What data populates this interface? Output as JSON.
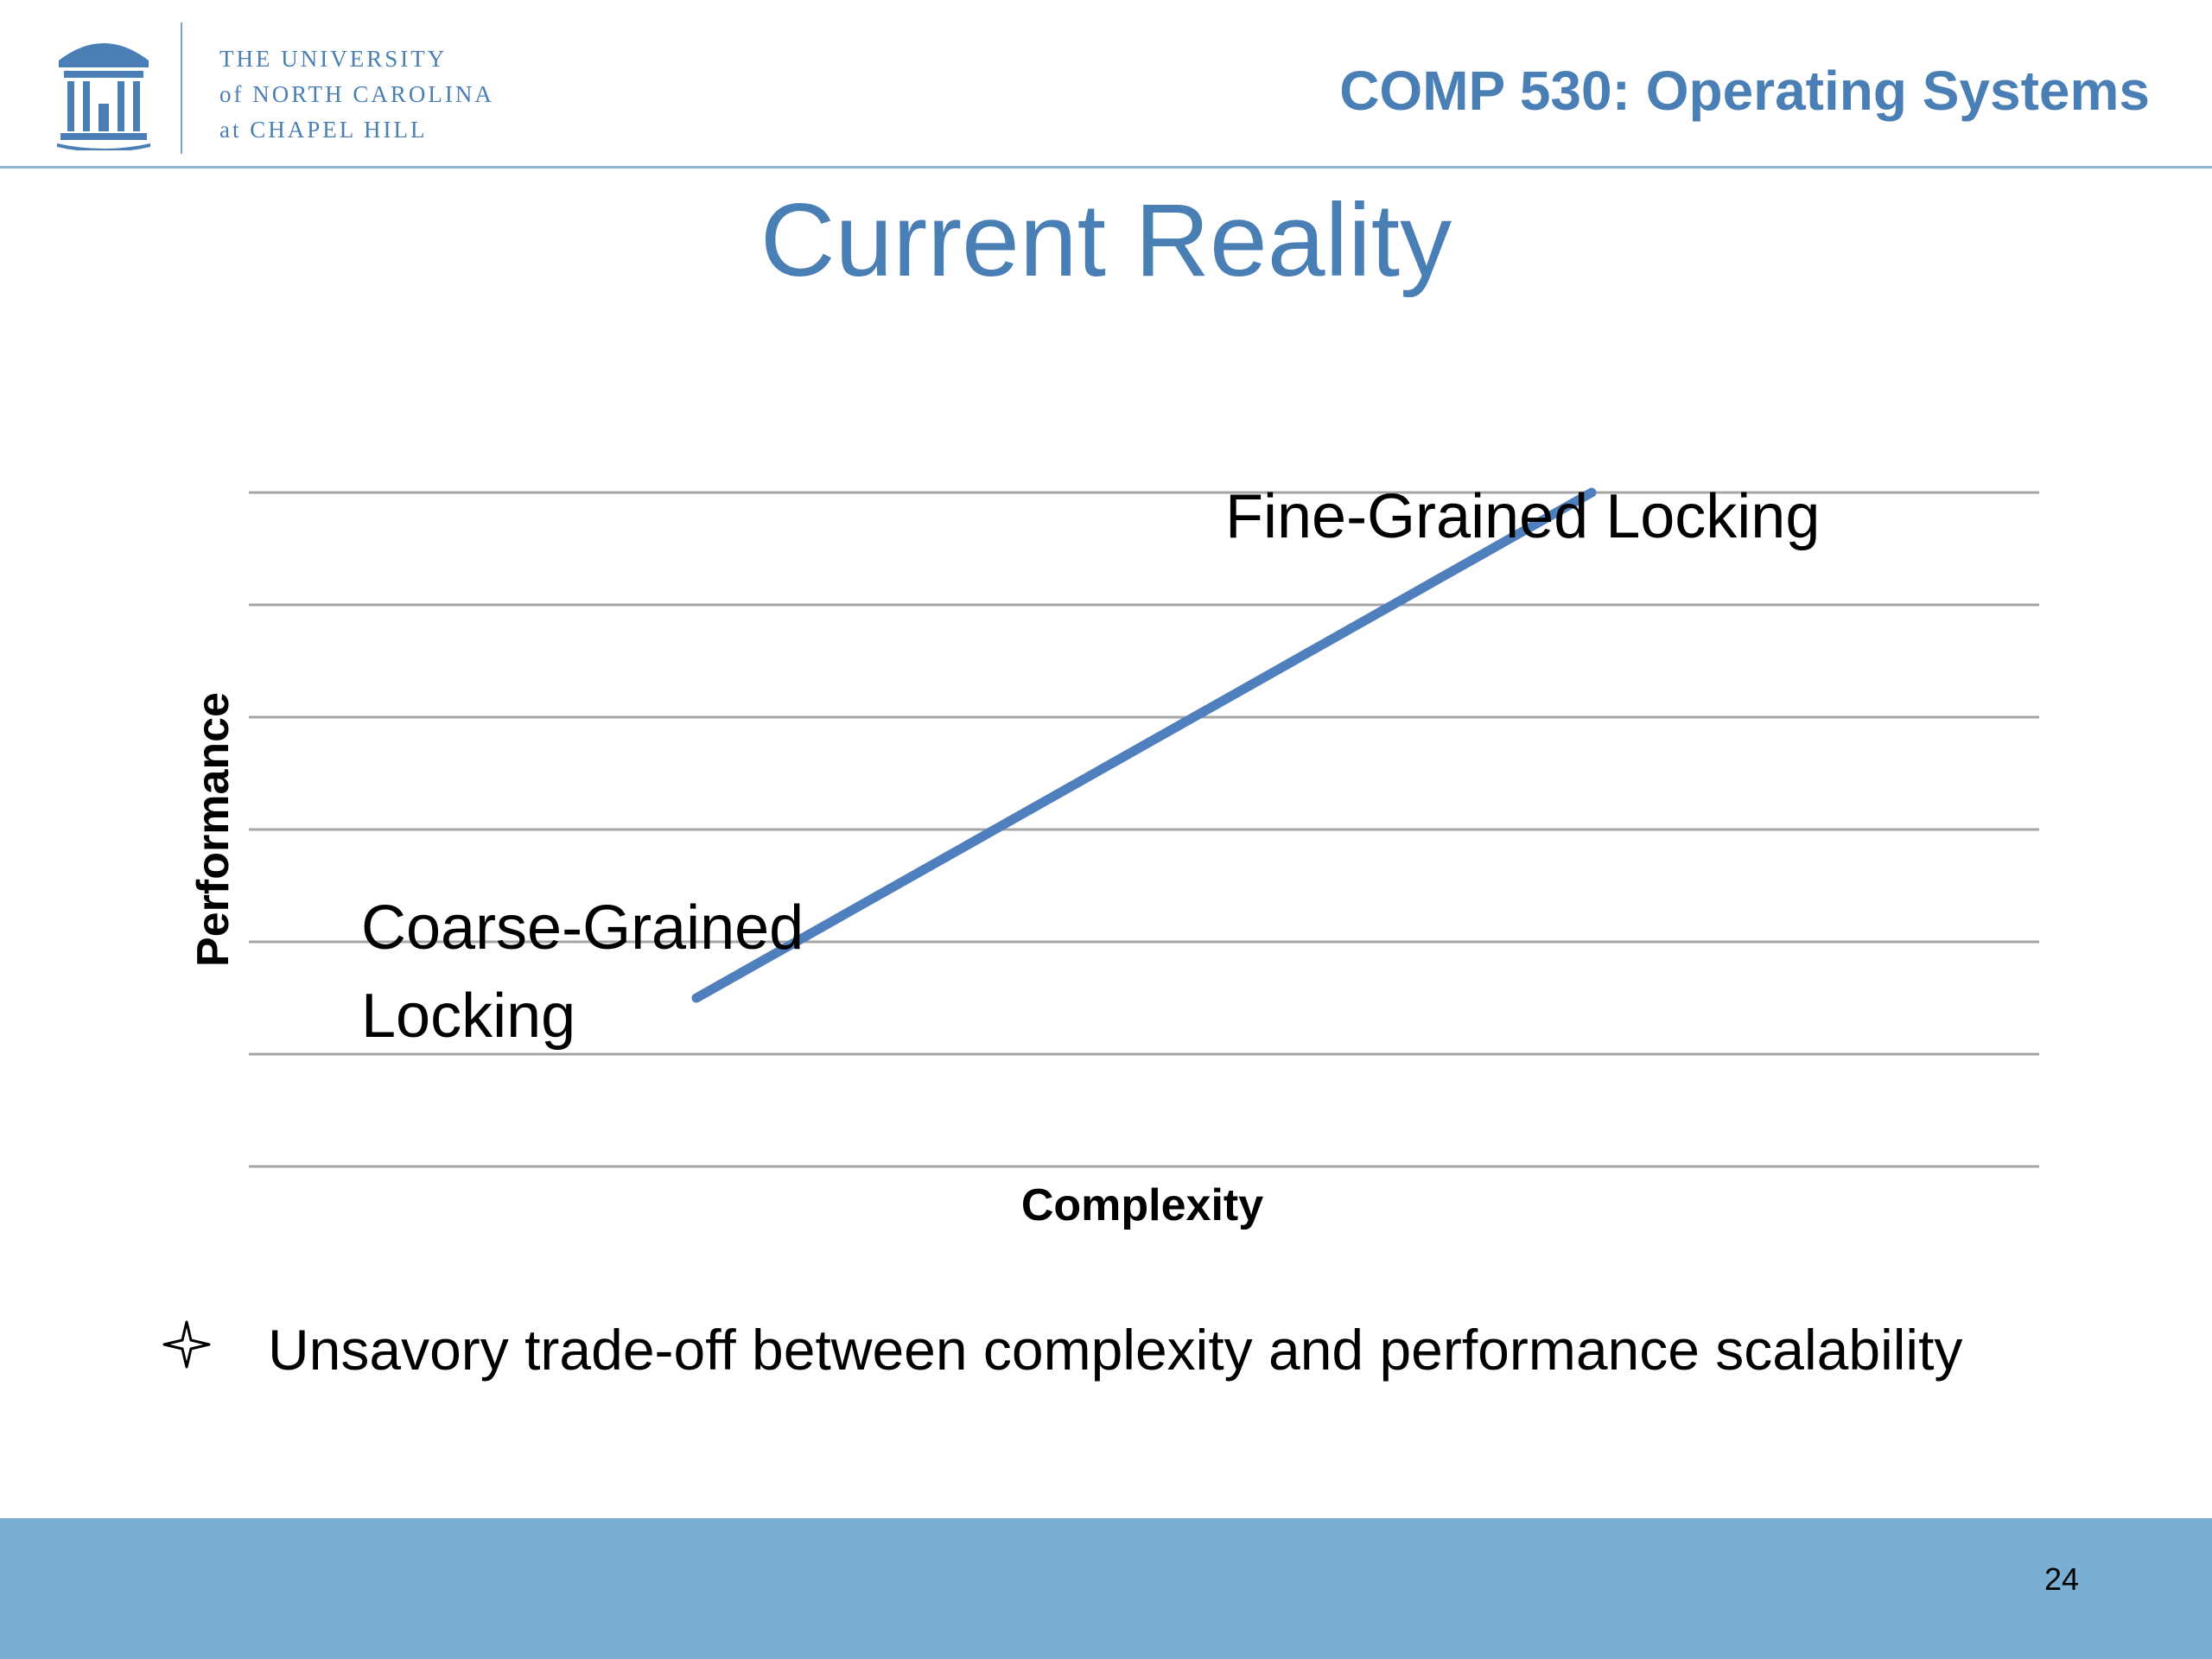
{
  "header": {
    "logo_lines": [
      "THE UNIVERSITY",
      "of NORTH CAROLINA",
      "at CHAPEL HILL"
    ],
    "course_title": "COMP 530: Operating Systems"
  },
  "slide": {
    "title": "Current Reality",
    "bullet": "Unsavory trade-off between complexity and performance scalability",
    "page_number": "24"
  },
  "colors": {
    "accent": "#4a7fb5",
    "line": "#4f7fbd",
    "footer": "#7aaed4",
    "grid": "#a6a6a6"
  },
  "chart_data": {
    "type": "line",
    "xlabel": "Complexity",
    "ylabel": "Performance",
    "grid": true,
    "series": [
      {
        "x": [
          1,
          2
        ],
        "values": [
          1.5,
          6
        ]
      }
    ],
    "xlim": [
      0.5,
      2.5
    ],
    "ylim": [
      0,
      6
    ],
    "annotations": [
      {
        "text": "Coarse-Grained Locking",
        "lines": [
          "Coarse-Grained",
          "Locking"
        ]
      },
      {
        "text": "Fine-Grained Locking",
        "lines": [
          "Fine-Grained Locking"
        ]
      }
    ]
  }
}
